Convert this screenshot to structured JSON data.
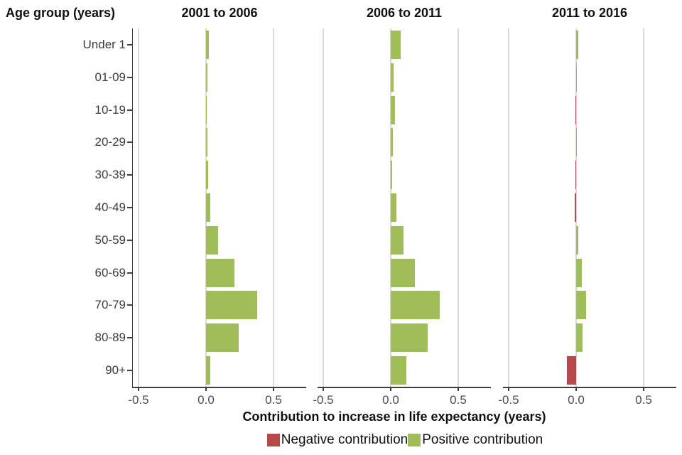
{
  "header": {
    "y_axis_title": "Age group (years)"
  },
  "chart_data": {
    "type": "bar",
    "orientation": "horizontal",
    "facets": 3,
    "categories": [
      "Under 1",
      "01-09",
      "10-19",
      "20-29",
      "30-39",
      "40-49",
      "50-59",
      "60-69",
      "70-79",
      "80-89",
      "90+"
    ],
    "series": [
      {
        "name": "2001 to 2006",
        "values": [
          0.02,
          0.008,
          0.003,
          0.013,
          0.016,
          0.033,
          0.09,
          0.21,
          0.38,
          0.24,
          0.032
        ]
      },
      {
        "name": "2006 to 2011",
        "values": [
          0.075,
          0.02,
          0.032,
          0.016,
          0.012,
          0.044,
          0.093,
          0.18,
          0.363,
          0.275,
          0.115
        ]
      },
      {
        "name": "2011 to 2016",
        "values": [
          0.016,
          0.004,
          -0.006,
          0.004,
          -0.006,
          -0.008,
          0.017,
          0.044,
          0.075,
          0.046,
          -0.068
        ]
      }
    ],
    "x_tick_labels": [
      "-0.5",
      "0.0",
      "0.5"
    ],
    "x_ticks": [
      -0.5,
      0.0,
      0.5
    ],
    "xlim": [
      -0.542,
      0.742
    ],
    "xlabel": "Contribution to increase in life expectancy (years)",
    "grid": "vertical-only",
    "legend_position": "bottom",
    "legend": [
      {
        "label": "Negative contribution",
        "color": "#b64a4a"
      },
      {
        "label": "Positive contribution",
        "color": "#9fbe59"
      }
    ],
    "colors": {
      "positive": "#9fbe59",
      "negative": "#b64a4a"
    }
  }
}
